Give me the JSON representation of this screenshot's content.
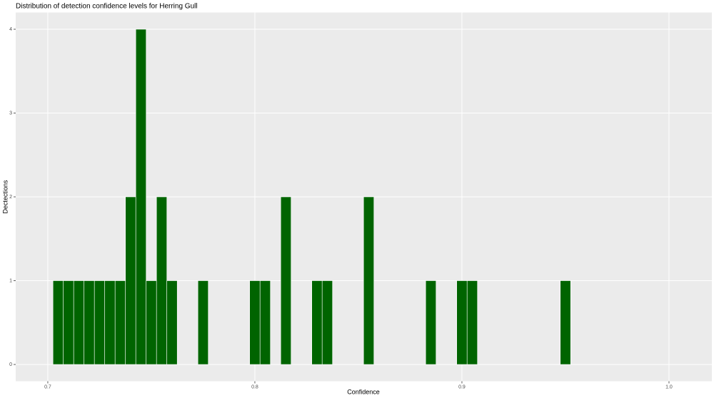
{
  "chart_data": {
    "type": "histogram",
    "title": "Distribution of detection confidence levels for Herring Gull",
    "x_label": "Confidence",
    "y_label": "Dectections",
    "bins": [
      0.7025,
      0.7075,
      0.7125,
      0.7175,
      0.7225,
      0.7275,
      0.7325,
      0.7375,
      0.7425,
      0.7475,
      0.7525,
      0.7575,
      0.7625,
      0.7675,
      0.7725,
      0.7775,
      0.7825,
      0.7875,
      0.7925,
      0.7975,
      0.8025,
      0.8075,
      0.8125,
      0.8175,
      0.8225,
      0.8275,
      0.8325,
      0.8375,
      0.8425,
      0.8475,
      0.8525,
      0.8575,
      0.8625,
      0.8675,
      0.8725,
      0.8775,
      0.8825,
      0.8875,
      0.8925,
      0.8975,
      0.9025,
      0.9075,
      0.9125,
      0.9175,
      0.9225,
      0.9275,
      0.9325,
      0.9375,
      0.9425,
      0.9475,
      0.9525
    ],
    "counts": [
      1,
      1,
      1,
      1,
      1,
      1,
      1,
      2,
      4,
      1,
      2,
      1,
      0,
      0,
      1,
      0,
      0,
      0,
      0,
      1,
      1,
      0,
      2,
      0,
      0,
      1,
      1,
      0,
      0,
      0,
      2,
      0,
      0,
      0,
      0,
      0,
      1,
      0,
      0,
      1,
      1,
      0,
      0,
      0,
      0,
      0,
      0,
      0,
      0,
      1
    ],
    "color": "#006400",
    "xlim": [
      0.6845,
      1.0207
    ],
    "xticks": [
      0.7,
      0.8,
      0.9,
      {
        "value": 1,
        "label": "1.0"
      }
    ],
    "ylim": [
      -0.2,
      4.2
    ],
    "yticks": [
      0,
      1,
      2,
      3,
      4
    ],
    "grid": true
  }
}
